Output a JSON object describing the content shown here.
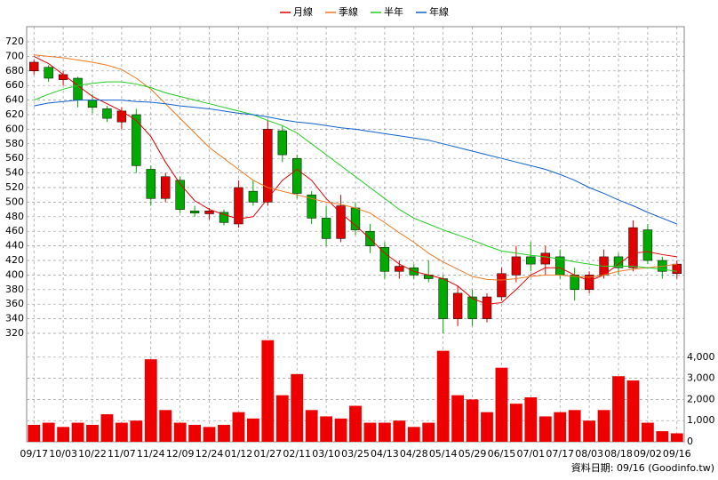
{
  "chart_data": [
    {
      "type": "candlestick",
      "categories": [
        "09/17",
        null,
        "10/03",
        null,
        "10/22",
        null,
        "11/07",
        null,
        "11/24",
        null,
        "12/09",
        null,
        "12/24",
        null,
        "01/12",
        null,
        "01/27",
        null,
        "02/11",
        null,
        "03/10",
        null,
        "03/25",
        null,
        "04/13",
        null,
        "04/28",
        null,
        "05/14",
        null,
        "05/29",
        null,
        "06/15",
        null,
        "07/01",
        null,
        "07/17",
        null,
        "08/03",
        null,
        "08/18",
        null,
        "09/02",
        null,
        "09/16"
      ],
      "open": [
        680,
        685,
        668,
        670,
        640,
        628,
        610,
        620,
        545,
        505,
        530,
        488,
        484,
        486,
        470,
        515,
        500,
        598,
        560,
        510,
        478,
        450,
        492,
        460,
        438,
        405,
        410,
        400,
        395,
        340,
        370,
        340,
        370,
        400,
        425,
        415,
        425,
        400,
        380,
        400,
        425,
        410,
        462,
        420,
        402
      ],
      "high": [
        695,
        688,
        680,
        672,
        648,
        632,
        630,
        628,
        550,
        540,
        535,
        495,
        492,
        490,
        530,
        530,
        612,
        605,
        565,
        515,
        495,
        510,
        500,
        470,
        445,
        420,
        415,
        420,
        400,
        385,
        380,
        375,
        410,
        440,
        445,
        440,
        435,
        410,
        405,
        435,
        430,
        475,
        470,
        425,
        420
      ],
      "low": [
        675,
        665,
        660,
        630,
        622,
        610,
        600,
        540,
        495,
        500,
        485,
        480,
        476,
        468,
        465,
        495,
        495,
        555,
        505,
        470,
        440,
        445,
        455,
        430,
        395,
        395,
        395,
        390,
        320,
        330,
        330,
        335,
        365,
        390,
        405,
        400,
        395,
        365,
        375,
        395,
        400,
        405,
        415,
        395,
        395
      ],
      "close": [
        692,
        670,
        675,
        640,
        630,
        615,
        625,
        550,
        505,
        535,
        490,
        485,
        488,
        472,
        520,
        500,
        600,
        565,
        512,
        478,
        450,
        495,
        462,
        440,
        405,
        412,
        400,
        395,
        340,
        375,
        340,
        370,
        402,
        425,
        415,
        430,
        400,
        380,
        400,
        425,
        410,
        465,
        420,
        405,
        415
      ],
      "up_color": "#e00000",
      "down_color": "#00aa00",
      "series": [
        {
          "name": "月線",
          "color": "#e00000",
          "values": [
            700,
            690,
            675,
            660,
            645,
            635,
            625,
            612,
            590,
            555,
            525,
            502,
            490,
            483,
            477,
            480,
            505,
            530,
            545,
            530,
            505,
            485,
            468,
            450,
            430,
            415,
            405,
            400,
            395,
            385,
            368,
            360,
            362,
            380,
            400,
            410,
            410,
            400,
            392,
            400,
            415,
            430,
            432,
            428,
            425
          ]
        },
        {
          "name": "季線",
          "color": "#f07820",
          "values": [
            702,
            700,
            698,
            695,
            692,
            688,
            682,
            670,
            655,
            635,
            615,
            595,
            575,
            560,
            545,
            530,
            520,
            515,
            510,
            505,
            500,
            497,
            492,
            485,
            472,
            458,
            445,
            430,
            418,
            408,
            398,
            394,
            393,
            395,
            398,
            400,
            400,
            398,
            397,
            400,
            405,
            408,
            410,
            412,
            415
          ]
        },
        {
          "name": "半年",
          "color": "#22cc22",
          "values": [
            640,
            648,
            655,
            660,
            663,
            665,
            665,
            662,
            657,
            650,
            645,
            640,
            635,
            630,
            625,
            620,
            612,
            605,
            595,
            580,
            565,
            550,
            535,
            520,
            505,
            490,
            478,
            470,
            462,
            455,
            448,
            440,
            433,
            430,
            427,
            425,
            422,
            418,
            415,
            412,
            412,
            412,
            410,
            408,
            405
          ]
        },
        {
          "name": "年線",
          "color": "#1060d0",
          "values": [
            632,
            636,
            638,
            640,
            640,
            640,
            640,
            638,
            637,
            635,
            632,
            630,
            628,
            625,
            622,
            620,
            617,
            613,
            610,
            608,
            605,
            602,
            600,
            597,
            594,
            591,
            588,
            585,
            580,
            575,
            570,
            565,
            560,
            555,
            550,
            545,
            538,
            530,
            520,
            512,
            503,
            495,
            486,
            478,
            470
          ]
        }
      ],
      "ylim": [
        320,
        720
      ],
      "yticks": [
        320,
        340,
        360,
        380,
        400,
        420,
        440,
        460,
        480,
        500,
        520,
        540,
        560,
        580,
        600,
        620,
        640,
        660,
        680,
        700,
        720
      ],
      "grid": true
    },
    {
      "type": "bar",
      "color": "#ee0000",
      "values": [
        800,
        900,
        700,
        900,
        800,
        1300,
        900,
        1000,
        3900,
        1500,
        900,
        800,
        700,
        800,
        1400,
        1100,
        4800,
        2200,
        3200,
        1500,
        1200,
        1100,
        1700,
        900,
        900,
        1000,
        700,
        900,
        4300,
        2200,
        2000,
        1400,
        3500,
        1800,
        2100,
        1200,
        1400,
        1500,
        1000,
        1500,
        3100,
        2900,
        900,
        500,
        400
      ],
      "ylim": [
        0,
        5000
      ],
      "yticks": [
        0,
        {
          "value": 1000,
          "label": "1,000"
        },
        {
          "value": 2000,
          "label": "2,000"
        },
        {
          "value": 3000,
          "label": "3,000"
        },
        {
          "value": 4000,
          "label": "4,000"
        }
      ],
      "grid": true
    }
  ],
  "footer": "資料日期: 09/16 (Goodinfo.tw)"
}
